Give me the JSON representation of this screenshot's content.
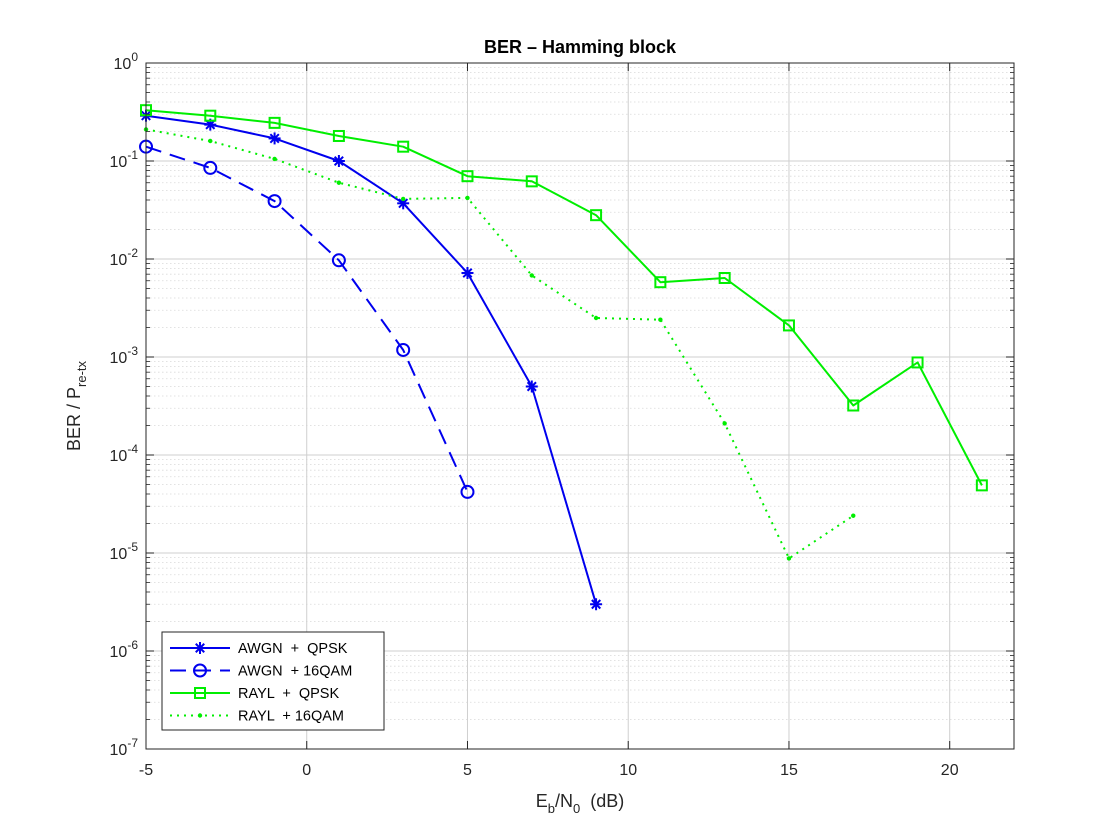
{
  "chart_data": {
    "type": "line",
    "title": "BER – Hamming block",
    "xlabel": {
      "main": "E",
      "sub1": "b",
      "mid": "/N",
      "sub2": "0",
      "tail": "  (dB)"
    },
    "ylabel": {
      "main": "BER / P",
      "sub": "re-tx"
    },
    "xlim": [
      -5,
      22
    ],
    "ylim_log10": [
      -7,
      0
    ],
    "y_scale": "log",
    "grid": true,
    "minor_grid": true,
    "legend_position": "bottom-left",
    "x_ticks": [
      -5,
      0,
      5,
      10,
      15,
      20
    ],
    "x_tick_labels": [
      "-5",
      "0",
      "5",
      "10",
      "15",
      "20"
    ],
    "y_tick_exponents": [
      -7,
      -6,
      -5,
      -4,
      -3,
      -2,
      -1,
      0
    ],
    "y_tick_labels": [
      {
        "base": "10",
        "exp": "-7"
      },
      {
        "base": "10",
        "exp": "-6"
      },
      {
        "base": "10",
        "exp": "-5"
      },
      {
        "base": "10",
        "exp": "-4"
      },
      {
        "base": "10",
        "exp": "-3"
      },
      {
        "base": "10",
        "exp": "-2"
      },
      {
        "base": "10",
        "exp": "-1"
      },
      {
        "base": "10",
        "exp": "0"
      }
    ],
    "series": [
      {
        "name": "AWGN  +  QPSK",
        "color": "#0000ee",
        "line": "solid",
        "marker": "asterisk",
        "x": [
          -5,
          -3,
          -1,
          1,
          3,
          5,
          7,
          9
        ],
        "y": [
          0.29,
          0.235,
          0.17,
          0.1,
          0.037,
          0.0072,
          0.0005,
          3e-06
        ]
      },
      {
        "name": "AWGN  + 16QAM",
        "color": "#0000ee",
        "line": "dashed",
        "marker": "circle",
        "x": [
          -5,
          -3,
          -1,
          1,
          3,
          5
        ],
        "y": [
          0.14,
          0.085,
          0.039,
          0.0097,
          0.00118,
          4.2e-05
        ]
      },
      {
        "name": "RAYL  +  QPSK",
        "color": "#00ee00",
        "line": "solid",
        "marker": "square",
        "x": [
          -5,
          -3,
          -1,
          1,
          3,
          5,
          7,
          9,
          11,
          13,
          15,
          17,
          19,
          21
        ],
        "y": [
          0.33,
          0.29,
          0.245,
          0.18,
          0.14,
          0.07,
          0.062,
          0.028,
          0.0058,
          0.0064,
          0.0021,
          0.00032,
          0.00088,
          4.9e-05
        ]
      },
      {
        "name": "RAYL  + 16QAM",
        "color": "#00ee00",
        "line": "dotted",
        "marker": "dot",
        "x": [
          -5,
          -3,
          -1,
          1,
          3,
          5,
          7,
          9,
          11,
          13,
          15,
          17
        ],
        "y": [
          0.21,
          0.16,
          0.105,
          0.06,
          0.041,
          0.042,
          0.0068,
          0.0025,
          0.0024,
          0.00021,
          8.8e-06,
          2.4e-05
        ]
      }
    ]
  }
}
